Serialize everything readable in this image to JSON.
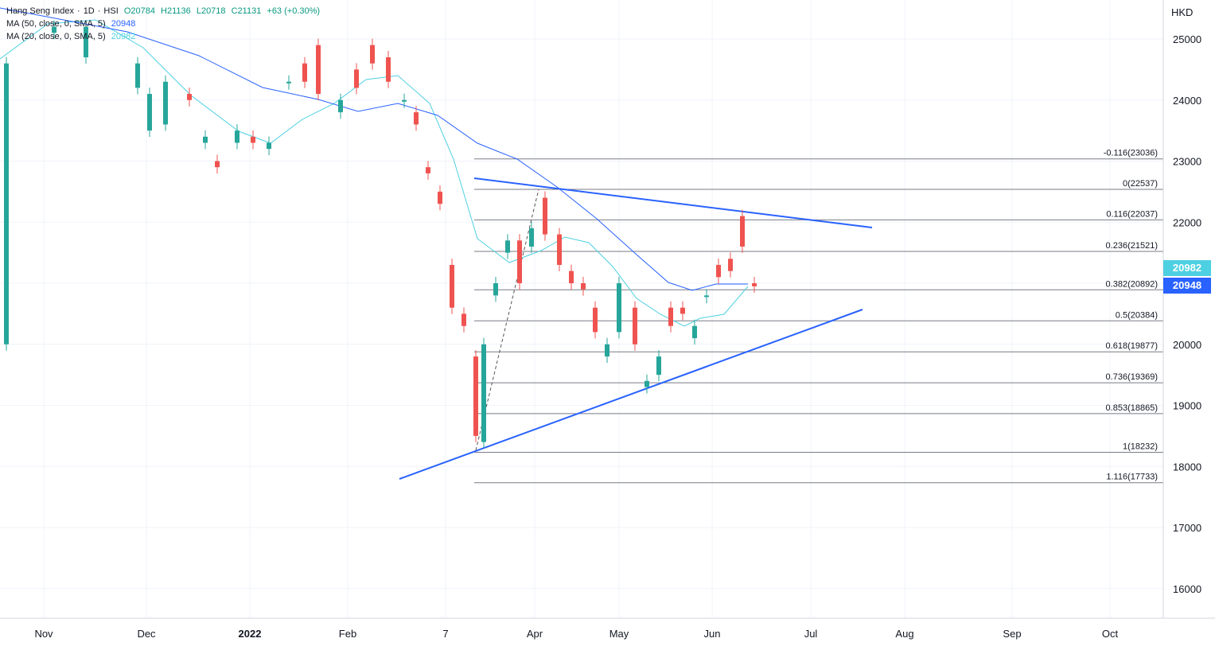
{
  "chart_data": {
    "type": "candlestick",
    "instrument": {
      "name": "Hang Seng Index",
      "interval": "1D",
      "exchange": "HSI"
    },
    "ohlc_legend": {
      "open": "O20784",
      "high": "H21136",
      "low": "L20718",
      "close": "C21131",
      "change": "+63 (+0.30%)"
    },
    "currency": "HKD",
    "ylim": [
      15500,
      25500
    ],
    "y_ticks": [
      16000,
      17000,
      18000,
      19000,
      20000,
      21000,
      22000,
      23000,
      24000,
      25000
    ],
    "x_ticks": [
      "Nov",
      "Dec",
      "2022",
      "Feb",
      "7",
      "Apr",
      "May",
      "Jun",
      "Jul",
      "Aug",
      "Sep",
      "Oct"
    ],
    "moving_averages": [
      {
        "label": "MA (50, close, 0, SMA, 5)",
        "value": 20948,
        "color": "#2962ff"
      },
      {
        "label": "MA (20, close, 0, SMA, 5)",
        "value": 20982,
        "color": "#4dd0e1"
      }
    ],
    "fib_levels": [
      {
        "ratio": "-0.116",
        "price": 23036,
        "label": "-0.116(23036)"
      },
      {
        "ratio": "0",
        "price": 22537,
        "label": "0(22537)"
      },
      {
        "ratio": "0.116",
        "price": 22037,
        "label": "0.116(22037)"
      },
      {
        "ratio": "0.236",
        "price": 21521,
        "label": "0.236(21521)"
      },
      {
        "ratio": "0.382",
        "price": 20892,
        "label": "0.382(20892)"
      },
      {
        "ratio": "0.5",
        "price": 20384,
        "label": "0.5(20384)"
      },
      {
        "ratio": "0.618",
        "price": 19877,
        "label": "0.618(19877)"
      },
      {
        "ratio": "0.736",
        "price": 19369,
        "label": "0.736(19369)"
      },
      {
        "ratio": "0.853",
        "price": 18865,
        "label": "0.853(18865)"
      },
      {
        "ratio": "1",
        "price": 18232,
        "label": "1(18232)"
      },
      {
        "ratio": "1.116",
        "price": 17733,
        "label": "1.116(17733)"
      }
    ],
    "price_tags": [
      {
        "value": "20982",
        "color": "#4dd0e1"
      },
      {
        "value": "20948",
        "color": "#2962ff"
      }
    ],
    "colors": {
      "up": "#26a69a",
      "down": "#ef5350",
      "trendline": "#2962ff",
      "grid": "#f0f3fa",
      "fib": "#787b86"
    }
  }
}
